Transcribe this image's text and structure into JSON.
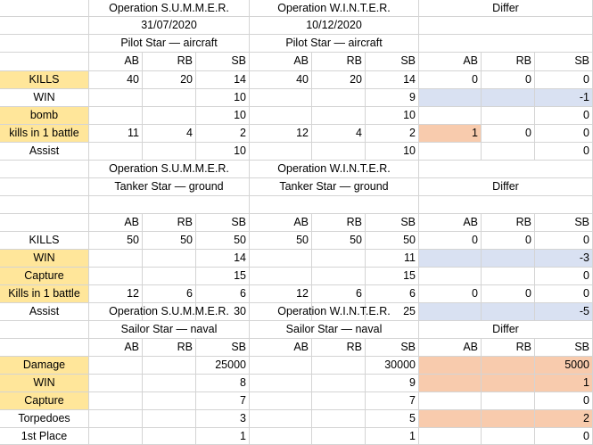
{
  "sections": [
    {
      "headers": [
        [
          "",
          "Operation S.U.M.M.E.R.",
          "Operation W.I.N.T.E.R.",
          "Differ"
        ],
        [
          "",
          "31/07/2020",
          "10/12/2020",
          ""
        ],
        [
          "",
          "Pilot Star — aircraft",
          "Pilot Star — aircraft",
          ""
        ]
      ],
      "cols": [
        "AB",
        "RB",
        "SB",
        "AB",
        "RB",
        "SB",
        "AB",
        "RB",
        "SB"
      ],
      "rows": [
        {
          "label": "KILLS",
          "v": [
            "40",
            "20",
            "14",
            "40",
            "20",
            "14",
            "0",
            "0",
            "0"
          ]
        },
        {
          "label": "WIN",
          "v": [
            "",
            "",
            "10",
            "",
            "",
            "9",
            "",
            "",
            "-1"
          ]
        },
        {
          "label": "bomb",
          "v": [
            "",
            "",
            "10",
            "",
            "",
            "10",
            "",
            "",
            "0"
          ]
        },
        {
          "label": "kills in 1 battle",
          "v": [
            "11",
            "4",
            "2",
            "12",
            "4",
            "2",
            "1",
            "0",
            "0"
          ]
        },
        {
          "label": "Assist",
          "v": [
            "",
            "",
            "10",
            "",
            "",
            "10",
            "",
            "",
            "0"
          ]
        }
      ]
    },
    {
      "headers": [
        [
          "",
          "Operation S.U.M.M.E.R.",
          "Operation W.I.N.T.E.R.",
          ""
        ],
        [
          "",
          "Tanker Star — ground",
          "Tanker Star — ground",
          "Differ"
        ],
        [
          "",
          "",
          "",
          ""
        ]
      ],
      "cols": [
        "AB",
        "RB",
        "SB",
        "AB",
        "RB",
        "SB",
        "AB",
        "RB",
        "SB"
      ],
      "rows": [
        {
          "label": "KILLS",
          "v": [
            "50",
            "50",
            "50",
            "50",
            "50",
            "50",
            "0",
            "0",
            "0"
          ]
        },
        {
          "label": "WIN",
          "v": [
            "",
            "",
            "14",
            "",
            "",
            "11",
            "",
            "",
            "-3"
          ]
        },
        {
          "label": "Capture",
          "v": [
            "",
            "",
            "15",
            "",
            "",
            "15",
            "",
            "",
            "0"
          ]
        },
        {
          "label": "Kills in 1 battle",
          "v": [
            "12",
            "6",
            "6",
            "12",
            "6",
            "6",
            "0",
            "0",
            "0"
          ]
        },
        {
          "label": "Assist",
          "v": [
            "",
            "",
            "30",
            "",
            "",
            "25",
            "",
            "",
            "-5"
          ]
        }
      ]
    },
    {
      "headers": [
        [
          "",
          "Operation S.U.M.M.E.R.",
          "Operation W.I.N.T.E.R.",
          ""
        ],
        [
          "",
          "Sailor Star — naval",
          "Sailor Star — naval",
          "Differ"
        ]
      ],
      "cols": [
        "AB",
        "RB",
        "SB",
        "AB",
        "RB",
        "SB",
        "AB",
        "RB",
        "SB"
      ],
      "rows": [
        {
          "label": "Damage",
          "v": [
            "",
            "",
            "25000",
            "",
            "",
            "30000",
            "",
            "",
            "5000"
          ]
        },
        {
          "label": "WIN",
          "v": [
            "",
            "",
            "8",
            "",
            "",
            "9",
            "",
            "",
            "1"
          ]
        },
        {
          "label": "Capture",
          "v": [
            "",
            "",
            "7",
            "",
            "",
            "7",
            "",
            "",
            "0"
          ]
        },
        {
          "label": "Torpedoes",
          "v": [
            "",
            "",
            "3",
            "",
            "",
            "5",
            "",
            "",
            "2"
          ]
        },
        {
          "label": "1st Place",
          "v": [
            "",
            "",
            "1",
            "",
            "",
            "1",
            "",
            "",
            "0"
          ]
        }
      ]
    }
  ],
  "colors": {
    "yellow": "#ffe69a",
    "blue": "#d9e1f2",
    "orange": "#f8cbad",
    "grid": "#d4d4d4"
  }
}
